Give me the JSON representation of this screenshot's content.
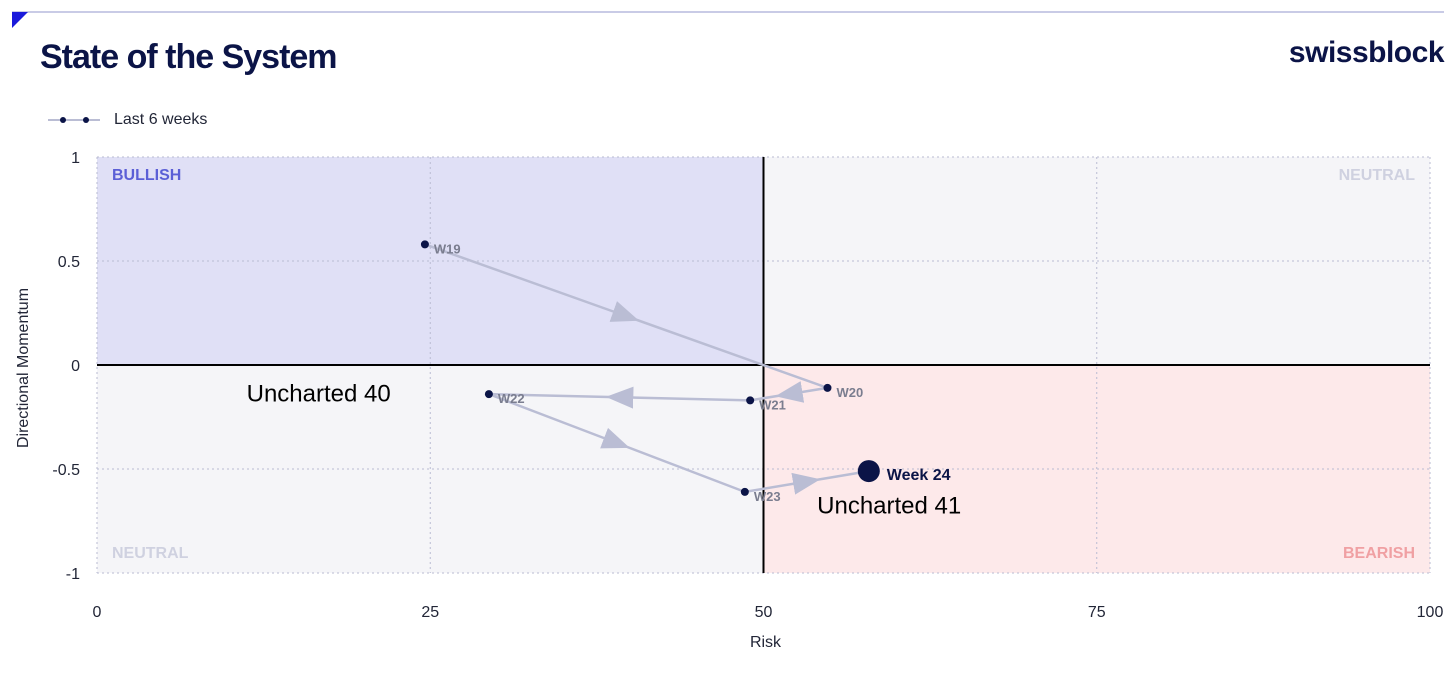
{
  "header": {
    "title": "State of the System",
    "brand": "swissblock"
  },
  "colors": {
    "navy": "#0b1447",
    "bullish_fill": "#e0e0f6",
    "bearish_fill": "#fde9ea",
    "neutral_fill": "#f5f5f8",
    "path": "#babdd4",
    "bullish_text": "#5b5fd6",
    "bearish_text": "#f0a0a3",
    "neutral_text": "#cfd1e0"
  },
  "chart_data": {
    "type": "scatter",
    "title": "State of the System",
    "xlabel": "Risk",
    "ylabel": "Directional Momentum",
    "xlim": [
      0,
      100
    ],
    "ylim": [
      -1,
      1
    ],
    "xticks": [
      0,
      25,
      50,
      75,
      100
    ],
    "yticks": [
      1,
      0.5,
      0,
      -0.5,
      -1
    ],
    "ytick_labels": [
      "1",
      "0.5",
      "0",
      "-0.5",
      "-1"
    ],
    "grid": true,
    "legend": {
      "label": "Last 6 weeks",
      "position": "top-left"
    },
    "quadrants": {
      "top_left": "BULLISH",
      "top_right": "NEUTRAL",
      "bottom_left": "NEUTRAL",
      "bottom_right": "BEARISH"
    },
    "series": [
      {
        "name": "Last 6 weeks",
        "points": [
          {
            "label": "W19",
            "x": 24.6,
            "y": 0.58
          },
          {
            "label": "W20",
            "x": 54.8,
            "y": -0.11
          },
          {
            "label": "W21",
            "x": 49.0,
            "y": -0.17
          },
          {
            "label": "W22",
            "x": 29.4,
            "y": -0.14
          },
          {
            "label": "W23",
            "x": 48.6,
            "y": -0.61
          },
          {
            "label": "Week 24",
            "x": 57.9,
            "y": -0.51
          }
        ]
      }
    ],
    "annotations": [
      {
        "text": "Uncharted 40",
        "x": 11.0,
        "y": -0.16
      },
      {
        "text": "Uncharted 41",
        "x": 53.8,
        "y": -0.7
      }
    ]
  }
}
